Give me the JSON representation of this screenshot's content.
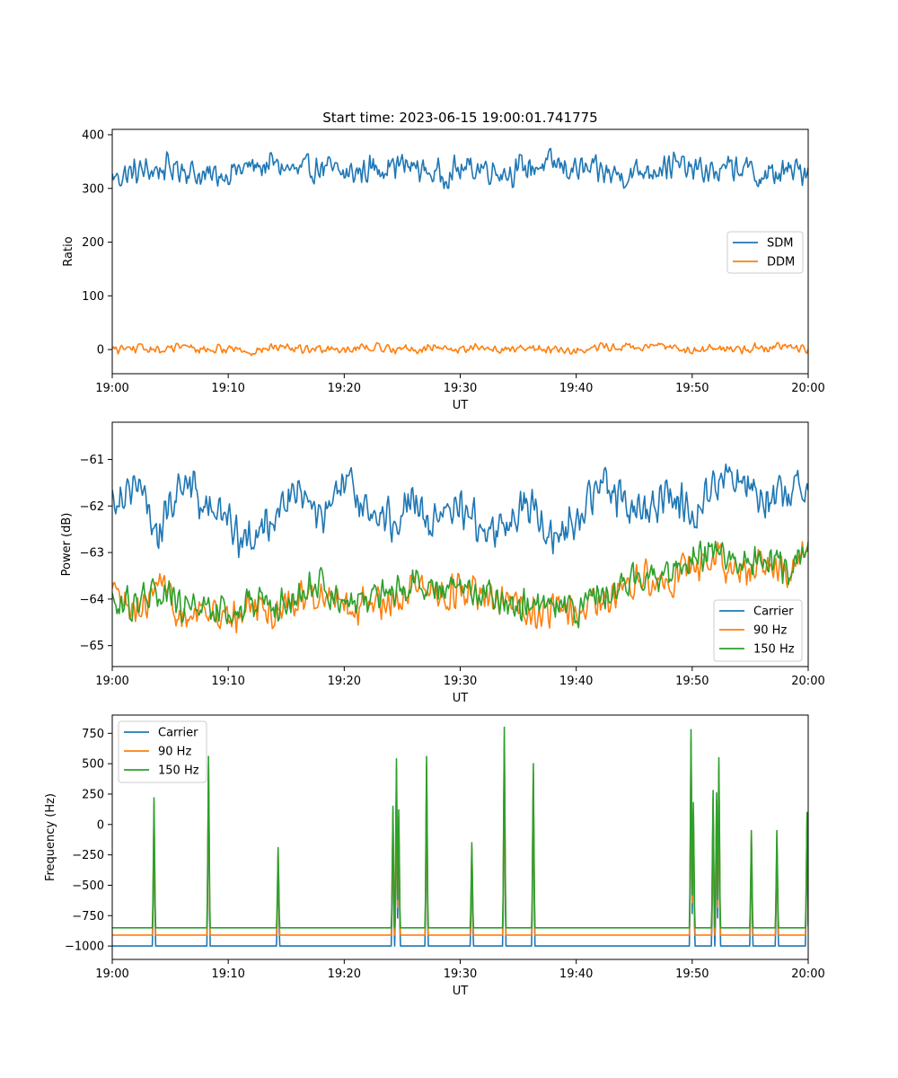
{
  "figure_title": "Start time: 2023-06-15 19:00:01.741775",
  "colors": {
    "blue": "#1f77b4",
    "orange": "#ff7f0e",
    "green": "#2ca02c"
  },
  "chart_data": [
    {
      "type": "line",
      "title": "Start time: 2023-06-15 19:00:01.741775",
      "xlabel": "UT",
      "ylabel": "Ratio",
      "x_unit": "minutes after 19:00 UT",
      "xlim": [
        0,
        60
      ],
      "ylim": [
        -45,
        410
      ],
      "xticks": [
        0,
        10,
        20,
        30,
        40,
        50,
        60
      ],
      "xtick_labels": [
        "19:00",
        "19:10",
        "19:20",
        "19:30",
        "19:40",
        "19:50",
        "20:00"
      ],
      "yticks": [
        0,
        100,
        200,
        300,
        400
      ],
      "ytick_labels": [
        "0",
        "100",
        "200",
        "300",
        "400"
      ],
      "legend_position": "center-right",
      "grid": false,
      "series": [
        {
          "name": "SDM",
          "color": "#1f77b4",
          "x": [
            0,
            2,
            4,
            6,
            8,
            10,
            12,
            14,
            16,
            18,
            20,
            22,
            24,
            26,
            28,
            30,
            32,
            34,
            36,
            38,
            40,
            42,
            44,
            46,
            48,
            50,
            52,
            54,
            56,
            58,
            60
          ],
          "y": [
            320,
            330,
            335,
            340,
            320,
            330,
            340,
            345,
            330,
            340,
            325,
            335,
            345,
            340,
            325,
            335,
            340,
            330,
            340,
            345,
            335,
            330,
            325,
            335,
            345,
            335,
            330,
            340,
            320,
            330,
            335
          ]
        },
        {
          "name": "DDM",
          "color": "#ff7f0e",
          "x": [
            0,
            2,
            4,
            6,
            8,
            10,
            12,
            14,
            16,
            18,
            20,
            22,
            24,
            26,
            28,
            30,
            32,
            34,
            36,
            38,
            40,
            42,
            44,
            46,
            48,
            50,
            52,
            54,
            56,
            58,
            60
          ],
          "y": [
            0,
            3,
            -2,
            5,
            0,
            2,
            -3,
            4,
            0,
            3,
            1,
            5,
            2,
            0,
            4,
            -1,
            3,
            0,
            2,
            1,
            -2,
            4,
            5,
            2,
            8,
            -3,
            2,
            1,
            4,
            8,
            0
          ]
        }
      ]
    },
    {
      "type": "line",
      "title": "",
      "xlabel": "UT",
      "ylabel": "Power (dB)",
      "x_unit": "minutes after 19:00 UT",
      "xlim": [
        0,
        60
      ],
      "ylim": [
        -65.45,
        -60.2
      ],
      "xticks": [
        0,
        10,
        20,
        30,
        40,
        50,
        60
      ],
      "xtick_labels": [
        "19:00",
        "19:10",
        "19:20",
        "19:30",
        "19:40",
        "19:50",
        "20:00"
      ],
      "yticks": [
        -65,
        -64,
        -63,
        -62,
        -61
      ],
      "ytick_labels": [
        "−65",
        "−64",
        "−63",
        "−62",
        "−61"
      ],
      "legend_position": "lower-right",
      "grid": false,
      "series": [
        {
          "name": "Carrier",
          "color": "#1f77b4",
          "x": [
            0,
            2,
            4,
            6,
            8,
            10,
            12,
            14,
            16,
            18,
            20,
            22,
            24,
            26,
            28,
            30,
            32,
            34,
            36,
            38,
            40,
            42,
            44,
            46,
            48,
            50,
            52,
            54,
            56,
            58,
            60
          ],
          "y": [
            -61.8,
            -61.5,
            -62.6,
            -61.4,
            -62.0,
            -62.3,
            -62.9,
            -62.1,
            -61.6,
            -62.4,
            -61.5,
            -62.0,
            -62.3,
            -61.8,
            -62.5,
            -61.9,
            -62.6,
            -62.4,
            -61.9,
            -62.7,
            -62.2,
            -61.6,
            -61.8,
            -62.2,
            -61.7,
            -62.1,
            -61.5,
            -61.4,
            -61.7,
            -61.9,
            -61.3
          ]
        },
        {
          "name": "90 Hz",
          "color": "#ff7f0e",
          "x": [
            0,
            2,
            4,
            6,
            8,
            10,
            12,
            14,
            16,
            18,
            20,
            22,
            24,
            26,
            28,
            30,
            32,
            34,
            36,
            38,
            40,
            42,
            44,
            46,
            48,
            50,
            52,
            54,
            56,
            58,
            60
          ],
          "y": [
            -63.9,
            -64.4,
            -63.8,
            -64.3,
            -64.2,
            -64.5,
            -64.1,
            -64.3,
            -64.0,
            -63.8,
            -64.2,
            -64.1,
            -64.0,
            -63.7,
            -63.9,
            -63.8,
            -64.0,
            -64.1,
            -64.3,
            -64.2,
            -64.4,
            -64.0,
            -63.8,
            -63.5,
            -63.6,
            -63.3,
            -63.1,
            -63.4,
            -63.2,
            -63.5,
            -63.0
          ]
        },
        {
          "name": "150 Hz",
          "color": "#2ca02c",
          "x": [
            0,
            2,
            4,
            6,
            8,
            10,
            12,
            14,
            16,
            18,
            20,
            22,
            24,
            26,
            28,
            30,
            32,
            34,
            36,
            38,
            40,
            42,
            44,
            46,
            48,
            50,
            52,
            54,
            56,
            58,
            60
          ],
          "y": [
            -64.0,
            -64.2,
            -63.7,
            -64.2,
            -64.1,
            -64.4,
            -64.0,
            -64.2,
            -63.9,
            -63.7,
            -64.1,
            -64.0,
            -63.8,
            -63.6,
            -63.8,
            -63.7,
            -63.9,
            -64.0,
            -64.2,
            -64.1,
            -64.3,
            -63.9,
            -63.7,
            -63.4,
            -63.5,
            -63.2,
            -63.0,
            -63.3,
            -63.1,
            -63.4,
            -62.9
          ]
        }
      ]
    },
    {
      "type": "line",
      "title": "",
      "xlabel": "UT",
      "ylabel": "Frequency (Hz)",
      "x_unit": "minutes after 19:00 UT",
      "xlim": [
        0,
        60
      ],
      "ylim": [
        -1110,
        900
      ],
      "xticks": [
        0,
        10,
        20,
        30,
        40,
        50,
        60
      ],
      "xtick_labels": [
        "19:00",
        "19:10",
        "19:20",
        "19:30",
        "19:40",
        "19:50",
        "20:00"
      ],
      "yticks": [
        -1000,
        -750,
        -500,
        -250,
        0,
        250,
        500,
        750
      ],
      "ytick_labels": [
        "−1000",
        "−750",
        "−500",
        "−250",
        "0",
        "250",
        "500",
        "750"
      ],
      "legend_position": "upper-left",
      "grid": false,
      "baselines": {
        "Carrier": -1000,
        "90 Hz": -910,
        "150 Hz": -850
      },
      "spikes": [
        {
          "x": 3.6,
          "y": 220
        },
        {
          "x": 8.3,
          "y": 560
        },
        {
          "x": 14.3,
          "y": -190
        },
        {
          "x": 24.2,
          "y": 150
        },
        {
          "x": 24.5,
          "y": 540
        },
        {
          "x": 24.7,
          "y": 120
        },
        {
          "x": 27.1,
          "y": 560
        },
        {
          "x": 31.0,
          "y": -150
        },
        {
          "x": 33.8,
          "y": 800
        },
        {
          "x": 36.3,
          "y": 500
        },
        {
          "x": 49.9,
          "y": 780
        },
        {
          "x": 50.1,
          "y": 180
        },
        {
          "x": 51.8,
          "y": 280
        },
        {
          "x": 52.1,
          "y": 260
        },
        {
          "x": 52.3,
          "y": 550
        },
        {
          "x": 55.1,
          "y": -50
        },
        {
          "x": 57.3,
          "y": -50
        },
        {
          "x": 59.9,
          "y": 100
        }
      ],
      "series": [
        {
          "name": "Carrier",
          "color": "#1f77b4"
        },
        {
          "name": "90 Hz",
          "color": "#ff7f0e"
        },
        {
          "name": "150 Hz",
          "color": "#2ca02c"
        }
      ]
    }
  ]
}
